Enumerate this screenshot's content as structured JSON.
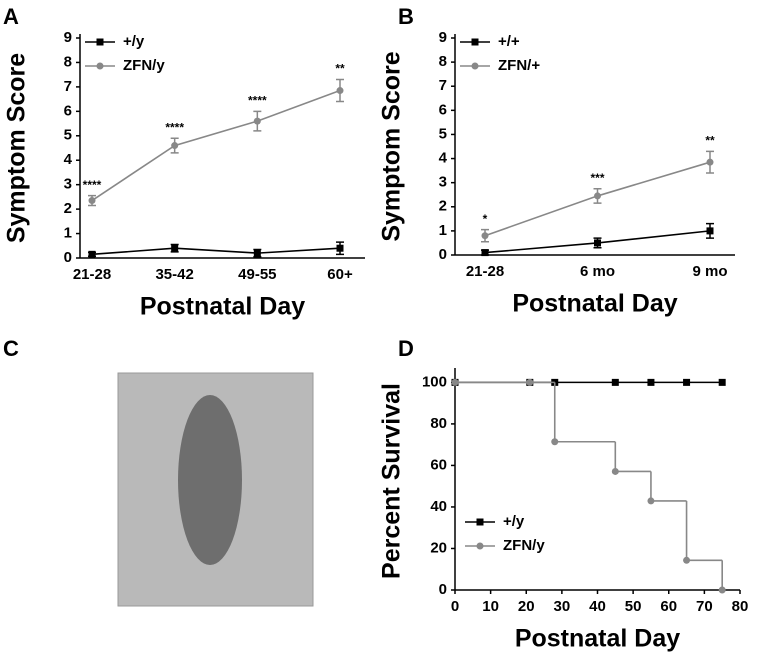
{
  "chart_data": [
    {
      "type": "line",
      "panel": "A",
      "x_label": "Postnatal Day",
      "y_label": "Symptom Score",
      "categories": [
        "21-28",
        "35-42",
        "49-55",
        "60+"
      ],
      "series": [
        {
          "name": "+/y",
          "color": "#000000",
          "marker": "square",
          "values": [
            0.15,
            0.4,
            0.2,
            0.4
          ],
          "errors": [
            0.08,
            0.15,
            0.15,
            0.25
          ]
        },
        {
          "name": "ZFN/y",
          "color": "#888888",
          "marker": "circle",
          "values": [
            2.35,
            4.6,
            5.6,
            6.85
          ],
          "errors": [
            0.2,
            0.3,
            0.4,
            0.45
          ]
        }
      ],
      "annotations": [
        "****",
        "****",
        "****",
        "**"
      ],
      "ylim": [
        0,
        9
      ],
      "yticks": [
        0,
        1,
        2,
        3,
        4,
        5,
        6,
        7,
        8,
        9
      ],
      "legend": "upper left"
    },
    {
      "type": "line",
      "panel": "B",
      "x_label": "Postnatal Day",
      "y_label": "Symptom Score",
      "categories": [
        "21-28",
        "6 mo",
        "9 mo"
      ],
      "series": [
        {
          "name": "+/+",
          "color": "#000000",
          "marker": "square",
          "values": [
            0.1,
            0.5,
            1.0
          ],
          "errors": [
            0.1,
            0.2,
            0.3
          ]
        },
        {
          "name": "ZFN/+",
          "color": "#888888",
          "marker": "circle",
          "values": [
            0.8,
            2.45,
            3.85
          ],
          "errors": [
            0.25,
            0.3,
            0.45
          ]
        }
      ],
      "annotations": [
        "*",
        "***",
        "**"
      ],
      "ylim": [
        0,
        9
      ],
      "yticks": [
        0,
        1,
        2,
        3,
        4,
        5,
        6,
        7,
        8,
        9
      ],
      "legend": "upper left"
    },
    {
      "type": "step",
      "panel": "D",
      "x_label": "Postnatal Day",
      "y_label": "Percent Survival",
      "x": [
        0,
        21,
        28,
        45,
        55,
        65,
        75
      ],
      "series": [
        {
          "name": "+/y",
          "color": "#000000",
          "marker": "square",
          "values": [
            100,
            100,
            100,
            100,
            100,
            100,
            100
          ]
        },
        {
          "name": "ZFN/y",
          "color": "#888888",
          "marker": "circle",
          "values": [
            100,
            100,
            71.4,
            57.1,
            42.9,
            14.3,
            0
          ]
        }
      ],
      "xlim": [
        0,
        80
      ],
      "xticks": [
        0,
        10,
        20,
        30,
        40,
        50,
        60,
        70,
        80
      ],
      "ylim": [
        0,
        105
      ],
      "yticks": [
        0,
        20,
        40,
        60,
        80,
        100
      ],
      "legend": "lower left"
    }
  ],
  "photo_panel": {
    "panel": "C"
  }
}
